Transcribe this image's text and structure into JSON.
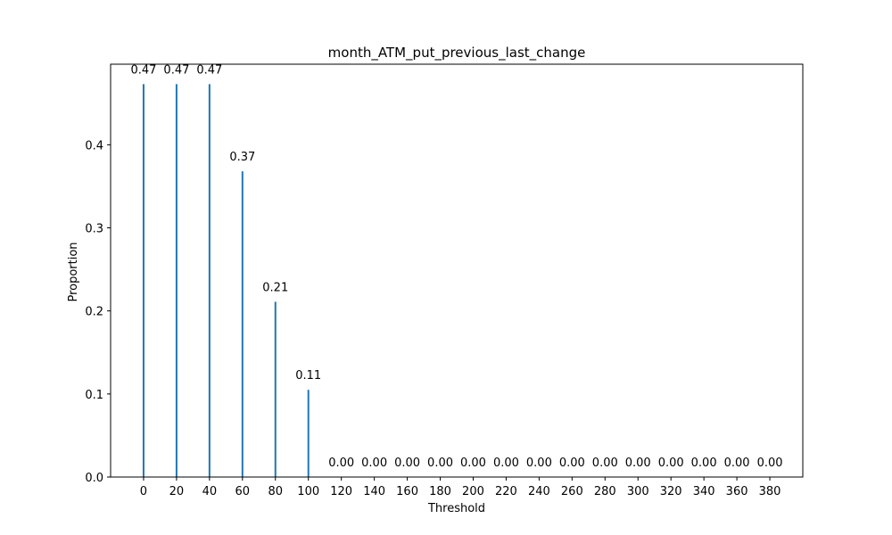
{
  "chart_data": {
    "type": "bar",
    "title": "month_ATM_put_previous_last_change",
    "xlabel": "Threshold",
    "ylabel": "Proportion",
    "x": [
      0,
      20,
      40,
      60,
      80,
      100,
      120,
      140,
      160,
      180,
      200,
      220,
      240,
      260,
      280,
      300,
      320,
      340,
      360,
      380
    ],
    "values": [
      0.473,
      0.473,
      0.473,
      0.368,
      0.211,
      0.105,
      0,
      0,
      0,
      0,
      0,
      0,
      0,
      0,
      0,
      0,
      0,
      0,
      0,
      0
    ],
    "data_labels": [
      "0.47",
      "0.47",
      "0.47",
      "0.37",
      "0.21",
      "0.11",
      "0.00",
      "0.00",
      "0.00",
      "0.00",
      "0.00",
      "0.00",
      "0.00",
      "0.00",
      "0.00",
      "0.00",
      "0.00",
      "0.00",
      "0.00",
      "0.00"
    ],
    "xticks": [
      "0",
      "20",
      "40",
      "60",
      "80",
      "100",
      "120",
      "140",
      "160",
      "180",
      "200",
      "220",
      "240",
      "260",
      "280",
      "300",
      "320",
      "340",
      "360",
      "380"
    ],
    "yticks": [
      0.0,
      0.1,
      0.2,
      0.3,
      0.4
    ],
    "ytick_labels": [
      "0.0",
      "0.1",
      "0.2",
      "0.3",
      "0.4"
    ],
    "xlim": [
      -20,
      400
    ],
    "ylim": [
      0,
      0.497
    ],
    "grid": false,
    "bar_color": "#1f77b4"
  }
}
